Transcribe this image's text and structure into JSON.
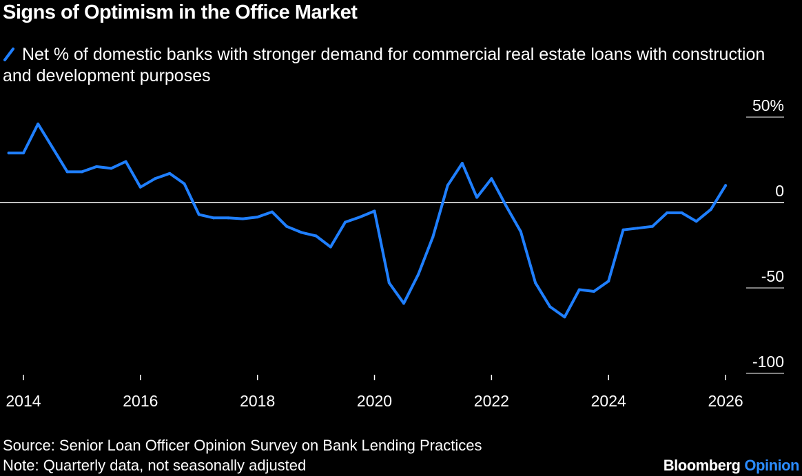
{
  "title": "Signs of Optimism in the Office Market",
  "footer": {
    "source": "Source: Senior Loan Officer Opinion Survey on Bank Lending Practices",
    "note": "Note: Quarterly data, not seasonally adjusted",
    "brand_1": "Bloomberg",
    "brand_2": "Opinion"
  },
  "colors": {
    "background": "#000000",
    "series": "#1f7fff",
    "text": "#ffffff",
    "brand_accent": "#2b8cff"
  },
  "chart_data": {
    "type": "line",
    "ylim": [
      -100,
      50
    ],
    "y_ticks": [
      {
        "value": 50,
        "label": "50%"
      },
      {
        "value": 0,
        "label": "0"
      },
      {
        "value": -50,
        "label": "-50"
      },
      {
        "value": -100,
        "label": "-100"
      }
    ],
    "x_range": [
      2013.6,
      2027.0
    ],
    "x_ticks": [
      {
        "value": 2014,
        "label": "2014"
      },
      {
        "value": 2016,
        "label": "2016"
      },
      {
        "value": 2018,
        "label": "2018"
      },
      {
        "value": 2020,
        "label": "2020"
      },
      {
        "value": 2022,
        "label": "2022"
      },
      {
        "value": 2024,
        "label": "2024"
      },
      {
        "value": 2026,
        "label": "2026"
      }
    ],
    "zero_line": true,
    "legend_position": "top-left",
    "series": [
      {
        "name": "Net % of domestic banks with stronger demand for commercial real estate loans with construction and development purposes",
        "x": [
          2013.75,
          2014.0,
          2014.25,
          2014.5,
          2014.75,
          2015.0,
          2015.25,
          2015.5,
          2015.75,
          2016.0,
          2016.25,
          2016.5,
          2016.75,
          2017.0,
          2017.25,
          2017.5,
          2017.75,
          2018.0,
          2018.25,
          2018.5,
          2018.75,
          2019.0,
          2019.25,
          2019.5,
          2019.75,
          2020.0,
          2020.25,
          2020.5,
          2020.75,
          2021.0,
          2021.25,
          2021.5,
          2021.75,
          2022.0,
          2022.25,
          2022.5,
          2022.75,
          2023.0,
          2023.25,
          2023.5,
          2023.75,
          2024.0,
          2024.25,
          2024.5,
          2024.75,
          2025.0,
          2025.25,
          2025.5,
          2025.75,
          2026.0
        ],
        "values": [
          29,
          29,
          46,
          32,
          18,
          18,
          21,
          20,
          24,
          9,
          14,
          17,
          11,
          -7,
          -9,
          -9,
          -9.5,
          -8.5,
          -5.5,
          -14,
          -17.5,
          -19.5,
          -26,
          -11.5,
          -8.5,
          -5,
          -47,
          -59,
          -42,
          -20,
          10,
          23,
          3,
          14,
          -2,
          -17,
          -47,
          -61,
          -67,
          -51,
          -52,
          -46,
          -16,
          -15,
          -14,
          -6,
          -6,
          -11,
          -4,
          10
        ]
      }
    ]
  }
}
